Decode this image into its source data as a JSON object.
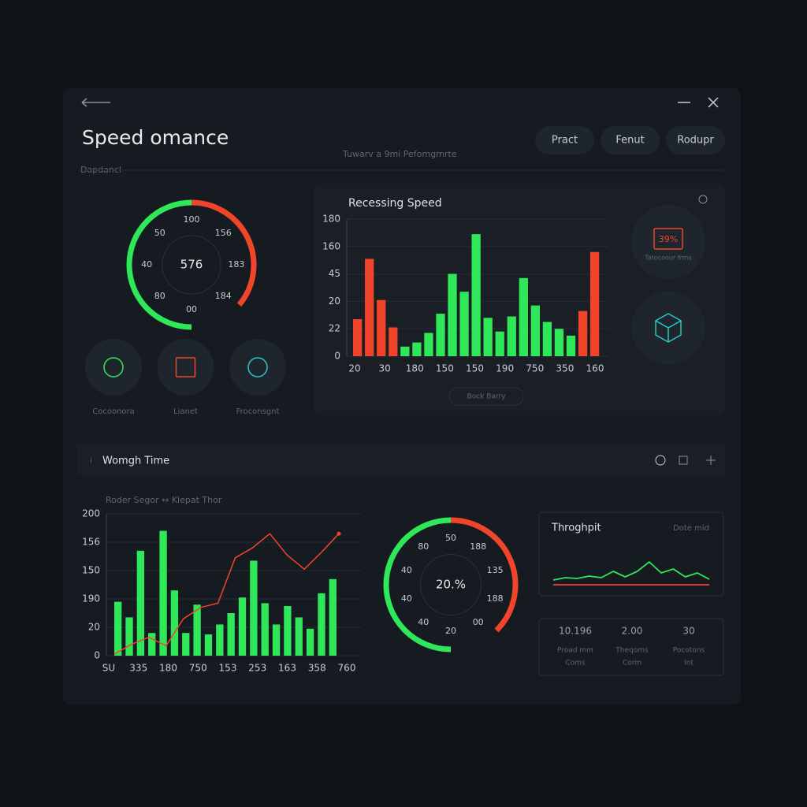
{
  "header": {
    "title": "Speed omance",
    "subtitle": "Tuwarv a 9mi Pefomgmrte",
    "breadcrumb": "Dapdancl",
    "buttons": [
      "Pract",
      "Fenut",
      "Rodupr"
    ]
  },
  "gauge_main": {
    "value": "576",
    "labels": [
      "100",
      "156",
      "183",
      "184",
      "00",
      "80",
      "40",
      "50"
    ]
  },
  "quick_actions": [
    "Cocoonora",
    "Lianet",
    "Froconsgnt"
  ],
  "speed_chart": {
    "title": "Recessing Speed",
    "y_labels": [
      "180",
      "160",
      "45",
      "20",
      "22",
      "0"
    ],
    "x_labels": [
      "20",
      "30",
      "180",
      "150",
      "150",
      "190",
      "750",
      "350",
      "160"
    ],
    "ylim": [
      0,
      100
    ],
    "values": [
      27,
      71,
      41,
      21,
      7,
      10,
      17,
      31,
      60,
      47,
      89,
      28,
      18,
      29,
      57,
      37,
      25,
      20,
      15,
      33,
      76
    ],
    "colors": [
      "#f0452a",
      "#f0452a",
      "#f0452a",
      "#f0452a",
      "#2ee85a",
      "#2ee85a",
      "#2ee85a",
      "#2ee85a",
      "#2ee85a",
      "#2ee85a",
      "#2ee85a",
      "#2ee85a",
      "#2ee85a",
      "#2ee85a",
      "#2ee85a",
      "#2ee85a",
      "#2ee85a",
      "#2ee85a",
      "#2ee85a",
      "#f0452a",
      "#f0452a"
    ],
    "button": "Bock Barry"
  },
  "side_widgets": {
    "badge": "39%",
    "label": "Tatocoour frms"
  },
  "time_section": {
    "title": "Womgh Time",
    "chart": {
      "legend": "Roder Segor ↔ Klepat Thor",
      "y_labels": [
        "200",
        "156",
        "150",
        "190",
        "20",
        "0"
      ],
      "x_labels": [
        "SU",
        "335",
        "180",
        "750",
        "153",
        "253",
        "163",
        "358",
        "760"
      ],
      "ylim": [
        0,
        100
      ],
      "bars": {
        "color": "#2ee85a",
        "values": [
          38,
          27,
          74,
          16,
          88,
          46,
          16,
          36,
          15,
          22,
          30,
          41,
          67,
          37,
          22,
          35,
          27,
          19,
          44,
          54
        ]
      },
      "line": {
        "color": "#f0452a",
        "values": [
          1,
          8,
          13,
          7,
          26,
          34,
          37,
          69,
          76,
          86,
          71,
          61,
          73,
          86
        ]
      }
    },
    "gauge": {
      "value": "20.%",
      "labels": [
        "50",
        "188",
        "135",
        "188",
        "00",
        "20",
        "40",
        "40",
        "40",
        "80"
      ]
    },
    "throughput": {
      "title": "Throghpit",
      "note": "Dote mid",
      "ylim": [
        0,
        100
      ],
      "series": [
        {
          "color": "#2ee85a",
          "values": [
            28,
            34,
            32,
            38,
            34,
            50,
            36,
            50,
            74,
            46,
            56,
            36,
            46,
            30
          ]
        },
        {
          "color": "#f0452a",
          "values": [
            16,
            16
          ]
        }
      ]
    },
    "stats": [
      {
        "value": "10.196",
        "label": [
          "Proad mm",
          "Coms"
        ]
      },
      {
        "value": "2.00",
        "label": [
          "Theqoms",
          "Corm"
        ]
      },
      {
        "value": "30",
        "label": [
          "Pocotons",
          "Int"
        ]
      }
    ]
  }
}
